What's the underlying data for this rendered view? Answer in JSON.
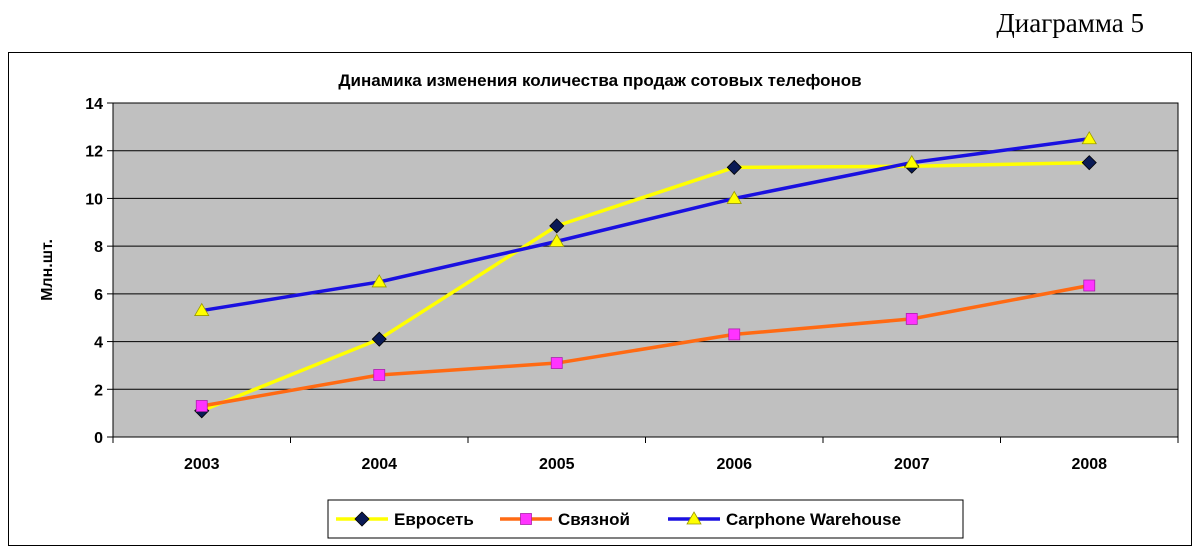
{
  "caption": "Диаграмма 5",
  "colors": {
    "plot_bg": "#c0c0c0",
    "grid": "#000000",
    "series": [
      "#ffff00",
      "#ff6a13",
      "#1a10e0"
    ],
    "markers": [
      "#0a1a55",
      "#ff33ff",
      "#ffff00"
    ]
  },
  "chart_data": {
    "type": "line",
    "title": "Динамика изменения количества продаж сотовых телефонов",
    "xlabel": "",
    "ylabel": "Млн.шт.",
    "ylim": [
      0,
      14
    ],
    "yticks": [
      "0",
      "2",
      "4",
      "6",
      "8",
      "10",
      "12",
      "14"
    ],
    "categories": [
      "2003",
      "2004",
      "2005",
      "2006",
      "2007",
      "2008"
    ],
    "grid": true,
    "legend": "bottom",
    "series": [
      {
        "name": "Евросеть",
        "values": [
          1.1,
          4.1,
          8.85,
          11.3,
          11.35,
          11.5
        ],
        "marker": "diamond"
      },
      {
        "name": "Связной",
        "values": [
          1.3,
          2.6,
          3.1,
          4.3,
          4.95,
          6.35
        ],
        "marker": "square"
      },
      {
        "name": "Carphone Warehouse",
        "values": [
          5.3,
          6.5,
          8.2,
          10.0,
          11.5,
          12.5
        ],
        "marker": "triangle"
      }
    ]
  }
}
